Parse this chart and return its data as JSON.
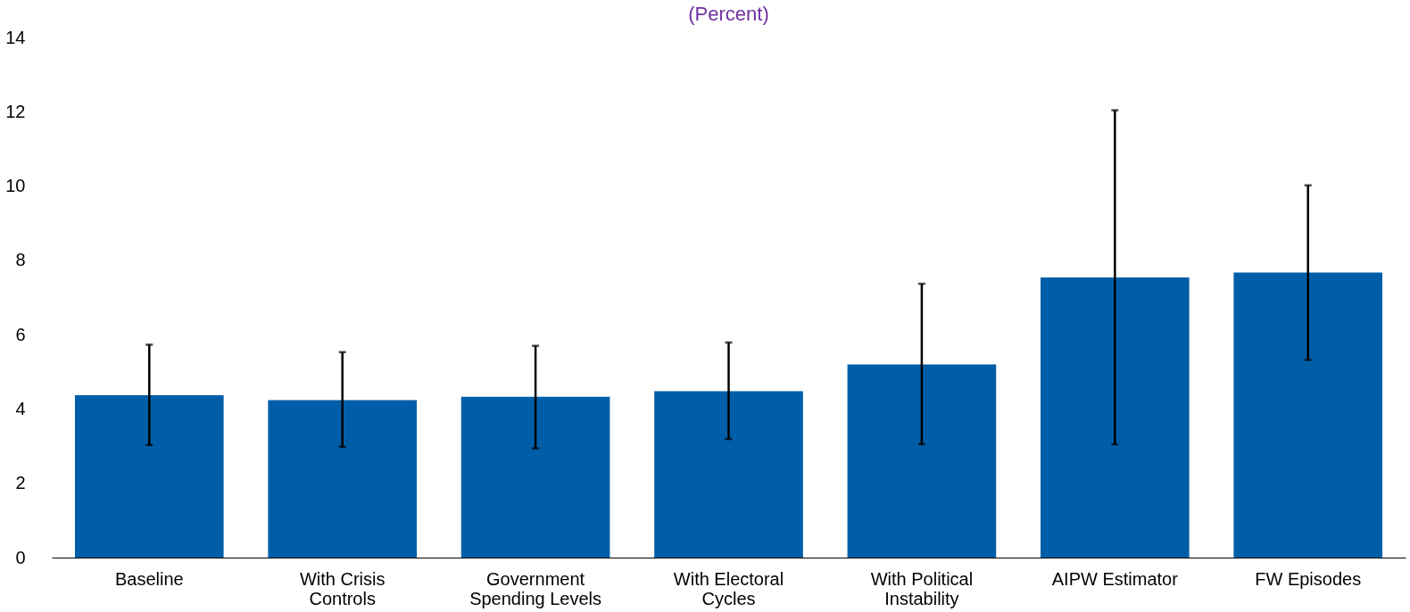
{
  "chart_data": {
    "type": "bar",
    "title": "(Percent)",
    "categories": [
      "Baseline",
      "With Crisis Controls",
      "Government Spending Levels",
      "With Electoral Cycles",
      "With Political Instability",
      "AIPW Estimator",
      "FW Episodes"
    ],
    "values": [
      4.37,
      4.24,
      4.33,
      4.48,
      5.2,
      7.54,
      7.67
    ],
    "errors": [
      [
        3.03,
        5.73
      ],
      [
        2.98,
        5.53
      ],
      [
        2.94,
        5.7
      ],
      [
        3.19,
        5.79
      ],
      [
        3.05,
        7.37
      ],
      [
        3.05,
        12.04
      ],
      [
        5.32,
        10.02
      ]
    ],
    "color": "#005ea8",
    "ylim": [
      0,
      14
    ],
    "yticks": [
      0,
      2,
      4,
      6,
      8,
      10,
      12,
      14
    ],
    "grid": false
  }
}
